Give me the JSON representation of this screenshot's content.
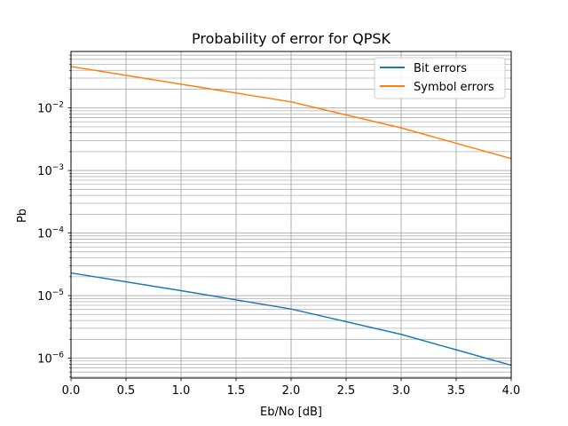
{
  "chart_data": {
    "type": "line",
    "title": "Probability of error for QPSK",
    "xlabel": "Eb/No [dB]",
    "ylabel": "Pb",
    "xlim": [
      0,
      4
    ],
    "ylim": [
      4.8e-07,
      0.08
    ],
    "yscale": "log",
    "grid": true,
    "grid_minor": true,
    "legend_placement": "top-right",
    "x_ticks": [
      0.0,
      0.5,
      1.0,
      1.5,
      2.0,
      2.5,
      3.0,
      3.5,
      4.0
    ],
    "x_tick_labels": [
      "0.0",
      "0.5",
      "1.0",
      "1.5",
      "2.0",
      "2.5",
      "3.0",
      "3.5",
      "4.0"
    ],
    "y_ticks": [
      {
        "base": "10",
        "exp": "−6",
        "value": 1e-06
      },
      {
        "base": "10",
        "exp": "−5",
        "value": 1e-05
      },
      {
        "base": "10",
        "exp": "−4",
        "value": 0.0001
      },
      {
        "base": "10",
        "exp": "−3",
        "value": 0.001
      },
      {
        "base": "10",
        "exp": "−2",
        "value": 0.01
      }
    ],
    "x": [
      0,
      1,
      2,
      3,
      4
    ],
    "series": [
      {
        "name": "Bit errors",
        "color": "#1f77b4",
        "values": [
          2.3e-05,
          1.2e-05,
          6.1e-06,
          2.4e-06,
          7.7e-07
        ]
      },
      {
        "name": "Symbol errors",
        "color": "#ff7f0e",
        "values": [
          0.046,
          0.024,
          0.0125,
          0.0048,
          0.00155
        ]
      }
    ]
  }
}
